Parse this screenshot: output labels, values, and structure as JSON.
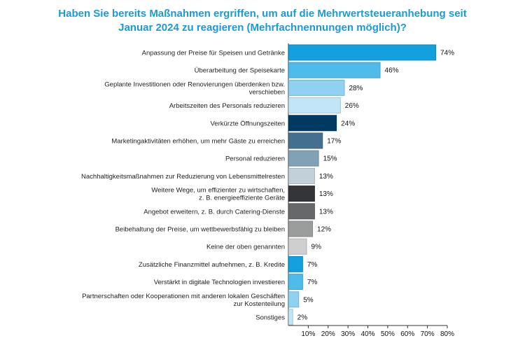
{
  "chart_data": {
    "type": "bar",
    "orientation": "horizontal",
    "title": [
      "Haben Sie bereits Maßnahmen ergriffen, um auf die Mehrwertsteueranhebung seit",
      "Januar 2024 zu reagieren (Mehrfachnennungen möglich)?"
    ],
    "xlabel": "",
    "ylabel": "",
    "xlim": [
      0,
      80
    ],
    "ticks": [
      10,
      20,
      30,
      40,
      50,
      60,
      70,
      80
    ],
    "tick_labels": [
      "10%",
      "20%",
      "30%",
      "40%",
      "50%",
      "60%",
      "70%",
      "80%"
    ],
    "grid": false,
    "categories": [
      [
        "Anpassung der Preise für Speisen und Getränke"
      ],
      [
        "Überarbeitung der Speisekarte"
      ],
      [
        "Geplante Investitionen oder Renovierungen überdenken bzw.",
        "verschieben"
      ],
      [
        "Arbeitszeiten des Personals reduzieren"
      ],
      [
        "Verkürzte Öffnungszeiten"
      ],
      [
        "Marketingaktivitäten erhöhen, um mehr Gäste zu erreichen"
      ],
      [
        "Personal reduzieren"
      ],
      [
        "Nachhaltigkeitsmaßnahmen zur Reduzierung von Lebensmittelresten"
      ],
      [
        "Weitere Wege, um effizienter zu wirtschaften,",
        "z. B. energieeffiziente Geräte"
      ],
      [
        "Angebot erweitern, z. B. durch Catering-Dienste"
      ],
      [
        "Beibehaltung der Preise, um wettbewerbsfähig zu bleiben"
      ],
      [
        "Keine der oben genannten"
      ],
      [
        "Zusätzliche Finanzmittel aufnehmen, z. B. Kredite"
      ],
      [
        "Verstärkt in digitale Technologien investieren"
      ],
      [
        "Partnerschaften oder Kooperationen mit anderen lokalen Geschäften",
        "zur Kostenteilung"
      ],
      [
        "Sonstiges"
      ]
    ],
    "values": [
      74,
      46,
      28,
      26,
      24,
      17,
      15,
      13,
      13,
      13,
      12,
      9,
      7,
      7,
      5,
      2
    ],
    "value_labels": [
      "74%",
      "46%",
      "28%",
      "26%",
      "24%",
      "17%",
      "15%",
      "13%",
      "13%",
      "13%",
      "12%",
      "9%",
      "7%",
      "7%",
      "5%",
      "2%"
    ],
    "colors": [
      "#12a0de",
      "#4fbbea",
      "#8ed1f0",
      "#c3e6f7",
      "#003a63",
      "#456f8f",
      "#81a1b5",
      "#c2d0da",
      "#333538",
      "#67686a",
      "#9b9c9c",
      "#cfcfcf",
      "#12a0de",
      "#4fbbea",
      "#8ed1f0",
      "#c3e6f7"
    ]
  }
}
